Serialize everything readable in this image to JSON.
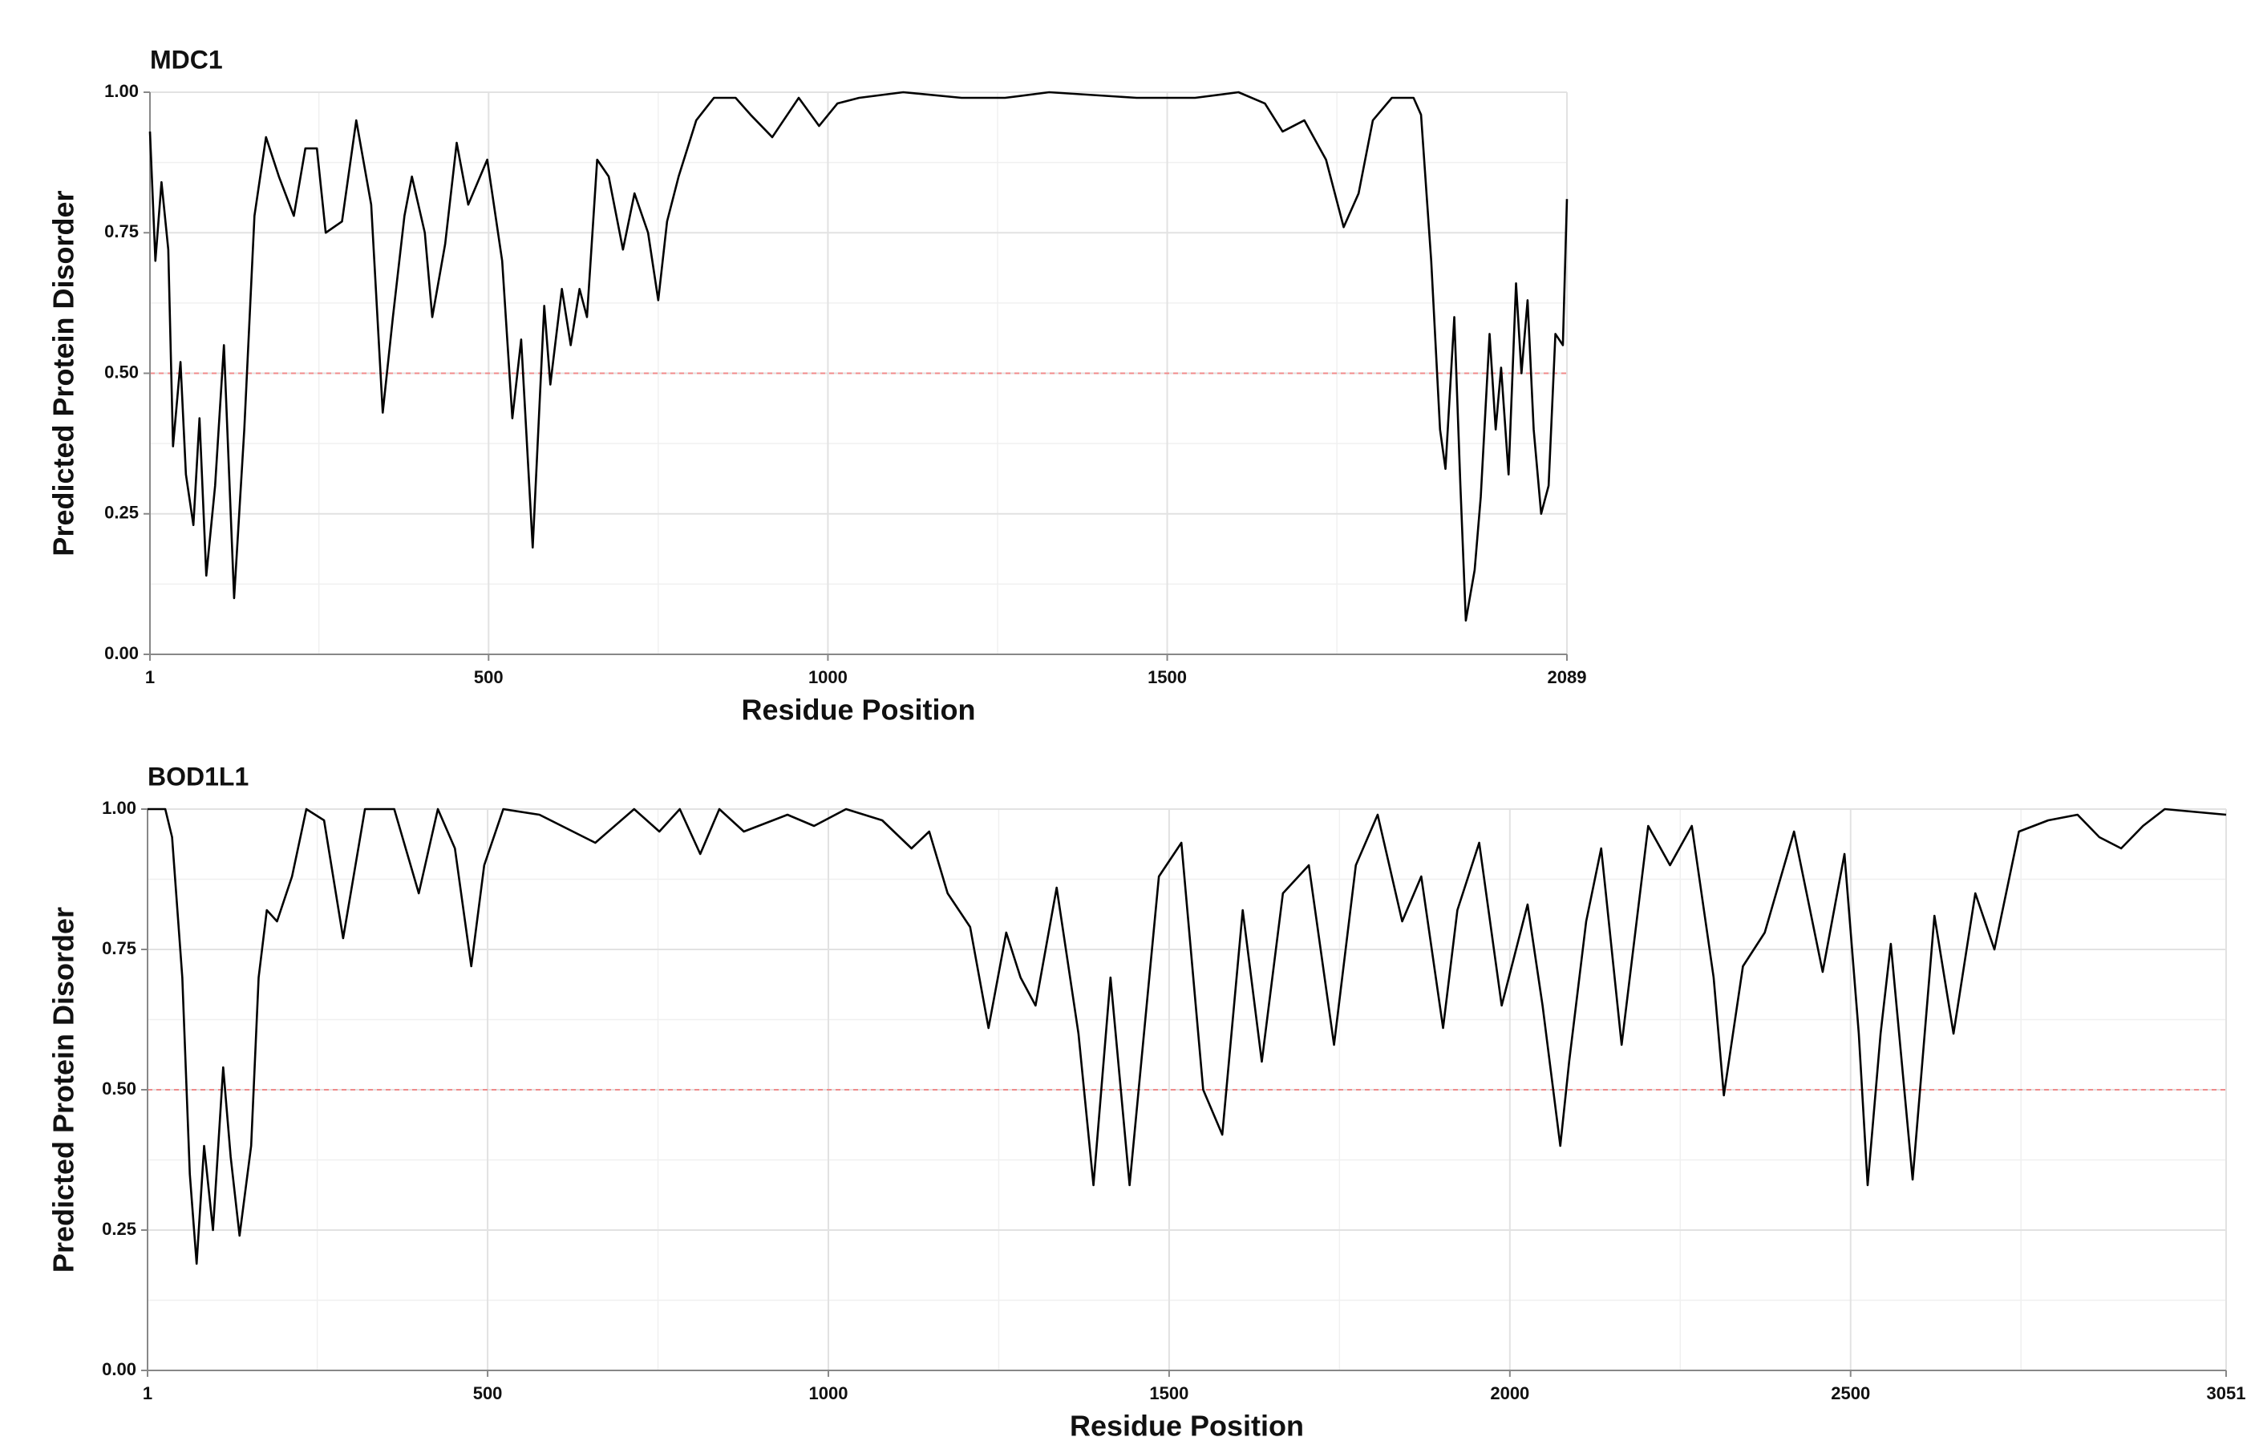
{
  "chart_data": [
    {
      "type": "line",
      "title": "MDC1",
      "x_label": "Residue Position",
      "y_label": "Predicted Protein Disorder",
      "color": "#000000",
      "grid": true,
      "xlim": [
        1,
        2089
      ],
      "xticks": [
        1,
        500,
        1000,
        1500,
        2089
      ],
      "minor_xticks": [
        250,
        750,
        1250,
        1750
      ],
      "ylim": [
        0,
        1
      ],
      "yticks": [
        {
          "value": 0,
          "label": "0.00"
        },
        {
          "value": 0.25,
          "label": "0.25"
        },
        {
          "value": 0.5,
          "label": "0.50"
        },
        {
          "value": 0.75,
          "label": "0.75"
        },
        {
          "value": 1,
          "label": "1.00"
        }
      ],
      "minor_yticks": [
        0.125,
        0.375,
        0.625,
        0.875
      ],
      "reference_line": {
        "value": 0.5,
        "color": "#f08a8a"
      },
      "x": [
        1,
        9,
        18,
        28,
        35,
        46,
        54,
        65,
        74,
        84,
        97,
        110,
        125,
        140,
        155,
        172,
        191,
        213,
        230,
        247,
        260,
        284,
        305,
        327,
        344,
        359,
        376,
        387,
        406,
        417,
        436,
        453,
        470,
        498,
        520,
        535,
        548,
        565,
        582,
        591,
        608,
        621,
        634,
        645,
        660,
        677,
        698,
        715,
        735,
        750,
        763,
        780,
        806,
        832,
        864,
        886,
        918,
        957,
        987,
        1014,
        1046,
        1111,
        1197,
        1261,
        1326,
        1455,
        1541,
        1605,
        1644,
        1670,
        1702,
        1734,
        1760,
        1782,
        1803,
        1831,
        1863,
        1874,
        1889,
        1902,
        1910,
        1923,
        1932,
        1940,
        1953,
        1962,
        1975,
        1984,
        1992,
        2003,
        2014,
        2022,
        2031,
        2040,
        2051,
        2062,
        2072,
        2083,
        2089
      ],
      "values": [
        0.93,
        0.7,
        0.84,
        0.72,
        0.37,
        0.52,
        0.32,
        0.23,
        0.42,
        0.14,
        0.3,
        0.55,
        0.1,
        0.4,
        0.78,
        0.92,
        0.85,
        0.78,
        0.9,
        0.9,
        0.75,
        0.77,
        0.95,
        0.8,
        0.43,
        0.6,
        0.78,
        0.85,
        0.75,
        0.6,
        0.73,
        0.91,
        0.8,
        0.88,
        0.7,
        0.42,
        0.56,
        0.19,
        0.62,
        0.48,
        0.65,
        0.55,
        0.65,
        0.6,
        0.88,
        0.85,
        0.72,
        0.82,
        0.75,
        0.63,
        0.77,
        0.85,
        0.95,
        0.99,
        0.99,
        0.96,
        0.92,
        0.99,
        0.94,
        0.98,
        0.99,
        1.0,
        0.99,
        0.99,
        1.0,
        0.99,
        0.99,
        1.0,
        0.98,
        0.93,
        0.95,
        0.88,
        0.76,
        0.82,
        0.95,
        0.99,
        0.99,
        0.96,
        0.7,
        0.4,
        0.33,
        0.6,
        0.3,
        0.06,
        0.15,
        0.28,
        0.57,
        0.4,
        0.51,
        0.32,
        0.66,
        0.5,
        0.63,
        0.4,
        0.25,
        0.3,
        0.57,
        0.55,
        0.81
      ]
    },
    {
      "type": "line",
      "title": "BOD1L1",
      "x_label": "Residue Position",
      "y_label": "Predicted Protein Disorder",
      "color": "#000000",
      "grid": true,
      "xlim": [
        1,
        3051
      ],
      "xticks": [
        1,
        500,
        1000,
        1500,
        2000,
        2500,
        3051
      ],
      "minor_xticks": [
        250,
        750,
        1250,
        1750,
        2250,
        2750
      ],
      "ylim": [
        0,
        1
      ],
      "yticks": [
        {
          "value": 0,
          "label": "0.00"
        },
        {
          "value": 0.25,
          "label": "0.25"
        },
        {
          "value": 0.5,
          "label": "0.50"
        },
        {
          "value": 0.75,
          "label": "0.75"
        },
        {
          "value": 1,
          "label": "1.00"
        }
      ],
      "minor_yticks": [
        0.125,
        0.375,
        0.625,
        0.875
      ],
      "reference_line": {
        "value": 0.5,
        "color": "#f08a8a"
      },
      "x": [
        1,
        27,
        37,
        52,
        63,
        73,
        84,
        97,
        112,
        123,
        136,
        153,
        164,
        176,
        191,
        213,
        234,
        260,
        288,
        320,
        363,
        399,
        427,
        452,
        476,
        495,
        523,
        576,
        658,
        715,
        752,
        782,
        812,
        840,
        876,
        940,
        979,
        1026,
        1079,
        1122,
        1148,
        1175,
        1208,
        1235,
        1261,
        1282,
        1304,
        1335,
        1367,
        1389,
        1414,
        1442,
        1485,
        1518,
        1550,
        1578,
        1608,
        1636,
        1667,
        1705,
        1742,
        1774,
        1806,
        1842,
        1870,
        1902,
        1923,
        1955,
        1988,
        2026,
        2048,
        2074,
        2087,
        2112,
        2134,
        2164,
        2203,
        2235,
        2267,
        2299,
        2314,
        2342,
        2374,
        2417,
        2459,
        2491,
        2512,
        2525,
        2544,
        2559,
        2591,
        2623,
        2651,
        2683,
        2711,
        2747,
        2790,
        2833,
        2865,
        2897,
        2929,
        2961,
        3051
      ],
      "values": [
        1.0,
        1.0,
        0.95,
        0.7,
        0.35,
        0.19,
        0.4,
        0.25,
        0.54,
        0.38,
        0.24,
        0.4,
        0.7,
        0.82,
        0.8,
        0.88,
        1.0,
        0.98,
        0.77,
        1.0,
        1.0,
        0.85,
        1.0,
        0.93,
        0.72,
        0.9,
        1.0,
        0.99,
        0.94,
        1.0,
        0.96,
        1.0,
        0.92,
        1.0,
        0.96,
        0.99,
        0.97,
        1.0,
        0.98,
        0.93,
        0.96,
        0.85,
        0.79,
        0.61,
        0.78,
        0.7,
        0.65,
        0.86,
        0.6,
        0.33,
        0.7,
        0.33,
        0.88,
        0.94,
        0.5,
        0.42,
        0.82,
        0.55,
        0.85,
        0.9,
        0.58,
        0.9,
        0.99,
        0.8,
        0.88,
        0.61,
        0.82,
        0.94,
        0.65,
        0.83,
        0.65,
        0.4,
        0.55,
        0.8,
        0.93,
        0.58,
        0.97,
        0.9,
        0.97,
        0.7,
        0.49,
        0.72,
        0.78,
        0.96,
        0.71,
        0.92,
        0.6,
        0.33,
        0.6,
        0.76,
        0.34,
        0.81,
        0.6,
        0.85,
        0.75,
        0.96,
        0.98,
        0.99,
        0.95,
        0.93,
        0.97,
        1.0,
        0.99
      ]
    }
  ]
}
